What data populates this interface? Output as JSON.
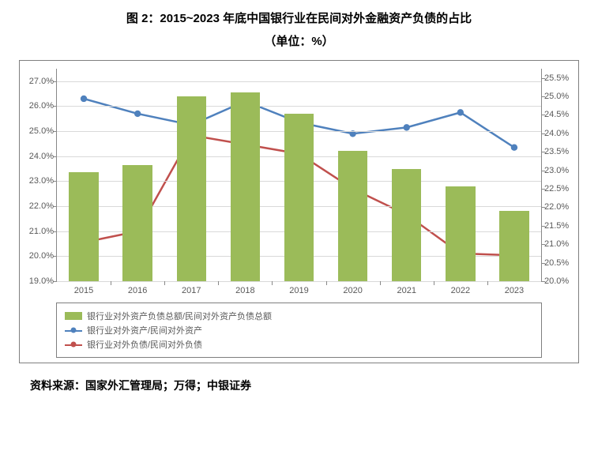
{
  "title": "图 2：2015~2023 年底中国银行业在民间对外金融资产负债的占比",
  "unit": "（单位：%）",
  "source": "资料来源：国家外汇管理局；万得；中银证券",
  "chart": {
    "type": "bar+line",
    "categories": [
      "2015",
      "2016",
      "2017",
      "2018",
      "2019",
      "2020",
      "2021",
      "2022",
      "2023"
    ],
    "left_axis": {
      "min": 19.0,
      "max": 27.5,
      "ticks": [
        19.0,
        20.0,
        21.0,
        22.0,
        23.0,
        24.0,
        25.0,
        26.0,
        27.0
      ],
      "tick_labels": [
        "19.0%",
        "20.0%",
        "21.0%",
        "22.0%",
        "23.0%",
        "24.0%",
        "25.0%",
        "26.0%",
        "27.0%"
      ],
      "label_fontsize": 11,
      "label_color": "#595959"
    },
    "right_axis": {
      "min": 20.0,
      "max": 25.75,
      "ticks": [
        20.0,
        20.5,
        21.0,
        21.5,
        22.0,
        22.5,
        23.0,
        23.5,
        24.0,
        24.5,
        25.0,
        25.5
      ],
      "tick_labels": [
        "20.0%",
        "20.5%",
        "21.0%",
        "21.5%",
        "22.0%",
        "22.5%",
        "23.0%",
        "23.5%",
        "24.0%",
        "24.5%",
        "25.0%",
        "25.5%"
      ],
      "label_fontsize": 11,
      "label_color": "#595959"
    },
    "bars": {
      "name": "银行业对外资产负债总额/民间对外资产负债总额",
      "color": "#9bbb59",
      "values_left": [
        23.35,
        23.65,
        26.4,
        26.55,
        25.7,
        24.2,
        23.5,
        22.8,
        21.8
      ],
      "bar_width_frac": 0.55
    },
    "line_blue": {
      "name": "银行业对外资产/民间对外资产",
      "color": "#4f81bd",
      "marker": "circle",
      "line_width": 2.5,
      "values_left": [
        26.3,
        25.7,
        25.25,
        26.2,
        25.35,
        24.9,
        25.15,
        25.75,
        24.35
      ]
    },
    "line_red": {
      "name": "银行业对外负债/民间对外负债",
      "color": "#c0504d",
      "marker": "circle",
      "line_width": 2.5,
      "values_right": [
        21.05,
        21.35,
        23.95,
        23.7,
        23.45,
        22.5,
        21.8,
        20.75,
        20.7
      ]
    },
    "grid_color": "#d9d9d9",
    "axis_color": "#888888",
    "background": "#ffffff"
  }
}
